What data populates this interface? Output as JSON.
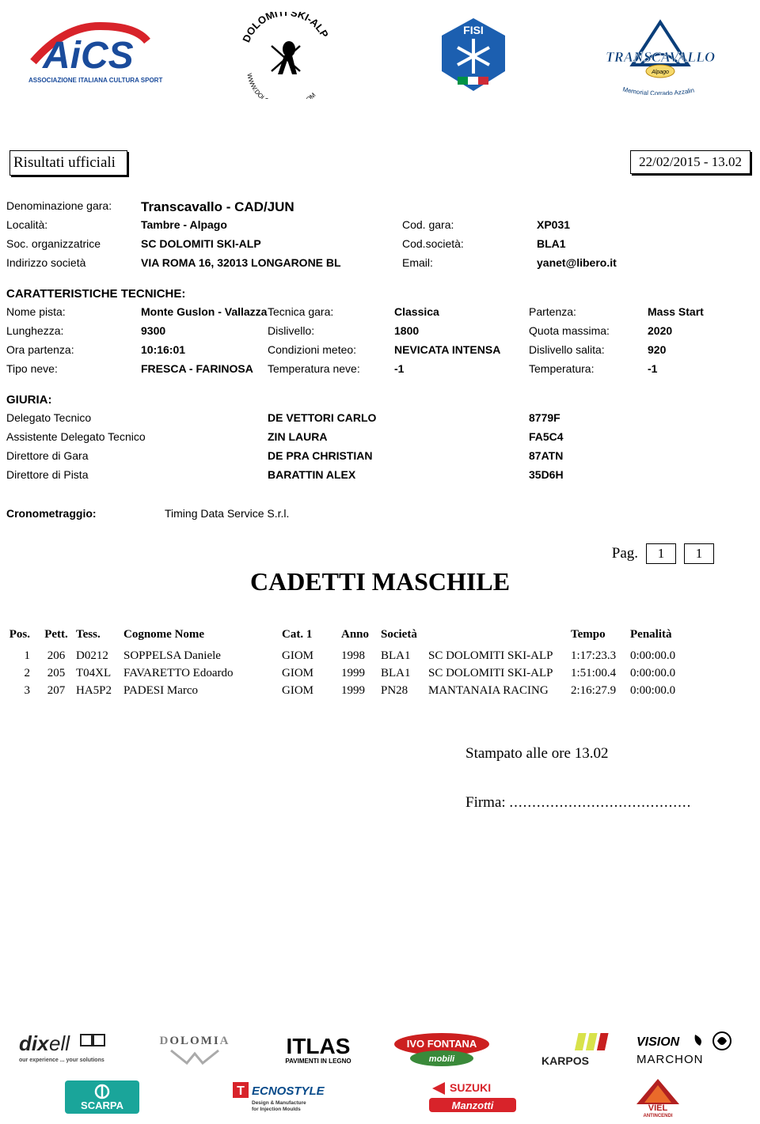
{
  "header": {
    "title_label": "Risultati ufficiali",
    "date_time": "22/02/2015 - 13.02"
  },
  "info": {
    "denom_label": "Denominazione gara:",
    "denom_value": "Transcavallo - CAD/JUN",
    "localita_label": "Località:",
    "localita_value": "Tambre - Alpago",
    "cod_gara_label": "Cod. gara:",
    "cod_gara_value": "XP031",
    "soc_org_label": "Soc. organizzatrice",
    "soc_org_value": "SC DOLOMITI SKI-ALP",
    "cod_soc_label": "Cod.società:",
    "cod_soc_value": "BLA1",
    "indirizzo_label": "Indirizzo società",
    "indirizzo_value": "VIA ROMA 16, 32013 LONGARONE BL",
    "email_label": "Email:",
    "email_value": "yanet@libero.it"
  },
  "ct": {
    "section": "CARATTERISTICHE TECNICHE:",
    "rows": [
      {
        "c1": "Nome pista:",
        "c2": "Monte Guslon - Vallazza",
        "c3": "Tecnica gara:",
        "c4": "Classica",
        "c5": "Partenza:",
        "c6": "Mass Start"
      },
      {
        "c1": "Lunghezza:",
        "c2": "9300",
        "c3": "Dislivello:",
        "c4": "1800",
        "c5": "Quota massima:",
        "c6": "2020"
      },
      {
        "c1": "Ora partenza:",
        "c2": "10:16:01",
        "c3": "Condizioni meteo:",
        "c4": "NEVICATA INTENSA",
        "c5": "Dislivello salita:",
        "c6": "920"
      },
      {
        "c1": "Tipo neve:",
        "c2": "FRESCA - FARINOSA",
        "c3": "Temperatura neve:",
        "c4": "-1",
        "c5": "Temperatura:",
        "c6": "-1"
      }
    ]
  },
  "giuria": {
    "section": "GIURIA:",
    "rows": [
      {
        "c1": "Delegato Tecnico",
        "c2": "DE VETTORI CARLO",
        "c3": "8779F"
      },
      {
        "c1": "Assistente Delegato Tecnico",
        "c2": "ZIN LAURA",
        "c3": "FA5C4"
      },
      {
        "c1": "Direttore di Gara",
        "c2": "DE PRA CHRISTIAN",
        "c3": "87ATN"
      },
      {
        "c1": "Direttore di Pista",
        "c2": "BARATTIN ALEX",
        "c3": "35D6H"
      }
    ]
  },
  "crono": {
    "label": "Cronometraggio:",
    "value": "Timing Data Service S.r.l."
  },
  "pager": {
    "label": "Pag.",
    "current": "1",
    "total": "1"
  },
  "category_title": "CADETTI MASCHILE",
  "results": {
    "headers": {
      "pos": "Pos.",
      "pett": "Pett.",
      "tess": "Tess.",
      "nome": "Cognome Nome",
      "cat": "Cat. 1",
      "anno": "Anno",
      "soc": "Società",
      "tempo": "Tempo",
      "pen": "Penalità"
    },
    "rows": [
      {
        "pos": "1",
        "pett": "206",
        "tess": "D0212",
        "nome": "SOPPELSA Daniele",
        "cat": "GIOM",
        "anno": "1998",
        "soc": "BLA1",
        "socn": "SC DOLOMITI SKI-ALP",
        "tempo": "1:17:23.3",
        "pen": "0:00:00.0"
      },
      {
        "pos": "2",
        "pett": "205",
        "tess": "T04XL",
        "nome": "FAVARETTO Edoardo",
        "cat": "GIOM",
        "anno": "1999",
        "soc": "BLA1",
        "socn": "SC DOLOMITI SKI-ALP",
        "tempo": "1:51:00.4",
        "pen": "0:00:00.0"
      },
      {
        "pos": "3",
        "pett": "207",
        "tess": "HA5P2",
        "nome": "PADESI Marco",
        "cat": "GIOM",
        "anno": "1999",
        "soc": "PN28",
        "socn": "MANTANAIA RACING",
        "tempo": "2:16:27.9",
        "pen": "0:00:00.0"
      }
    ]
  },
  "footer": {
    "stamp": "Stampato alle ore 13.02",
    "firma_label": "Firma: "
  },
  "logos": {
    "aics_text": "AiCS",
    "aics_sub": "ASSOCIAZIONE ITALIANA CULTURA SPORT",
    "dolomiti": "DOLOMITI SKI-ALP",
    "dolomiti_url": "WWW.DOLOMITISKI-ALP.COM",
    "fisi": "FISI",
    "transcavallo": "TRANSCAVALLO",
    "transcavallo_sub": "Memorial Corrado Azzalin"
  },
  "sponsors": {
    "dixell": "dixell",
    "dixell_sub": "our experience ... your solutions",
    "dolomia": "DOLOMIA",
    "itlas": "ITLAS",
    "itlas_sub": "PAVIMENTI IN LEGNO",
    "ivo": "IVO FONTANA",
    "ivo_sub": "mobili",
    "karpos": "KARPOS",
    "vision": "VISION",
    "marchon": "MARCHON",
    "scarpa": "SCARPA",
    "tecno": "TECNOSTYLE",
    "tecno_sub": "Design & Manufacture for Injection Moulds",
    "suzuki": "SUZUKI",
    "manzotti": "Manzotti",
    "viel": "VIEL",
    "viel_sub": "ANTINCENDI"
  },
  "colors": {
    "aics_blue": "#1a4b9b",
    "aics_red": "#d8232a",
    "fisi_blue": "#1c5fb0",
    "fisi_white": "#ffffff",
    "trans_blue": "#0a3e7a",
    "ivo_red": "#cc2020",
    "ivo_green": "#3a8a3a",
    "scarpa_teal": "#1aa59a",
    "karpos_yellow": "#d8e24a",
    "suzuki_red": "#d8232a",
    "manzotti_red": "#d8232a",
    "viel_red": "#b22020"
  }
}
